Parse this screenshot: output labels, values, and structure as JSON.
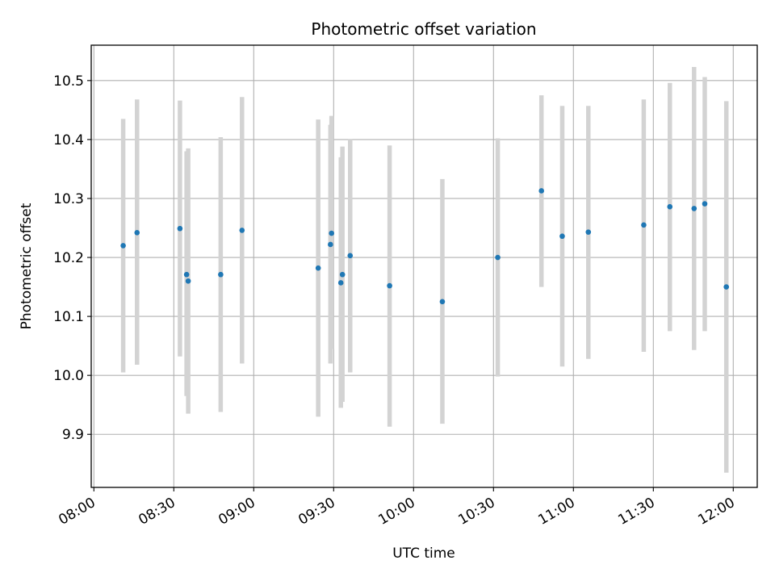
{
  "chart_data": {
    "type": "scatter",
    "title": "Photometric offset variation",
    "xlabel": "UTC time",
    "ylabel": "Photometric offset",
    "grid": true,
    "xlim_minutes": [
      479,
      729
    ],
    "ylim": [
      9.81,
      10.56
    ],
    "x_ticks": [
      {
        "minutes": 480,
        "label": "08:00"
      },
      {
        "minutes": 510,
        "label": "08:30"
      },
      {
        "minutes": 540,
        "label": "09:00"
      },
      {
        "minutes": 570,
        "label": "09:30"
      },
      {
        "minutes": 600,
        "label": "10:00"
      },
      {
        "minutes": 630,
        "label": "10:30"
      },
      {
        "minutes": 660,
        "label": "11:00"
      },
      {
        "minutes": 690,
        "label": "11:30"
      },
      {
        "minutes": 720,
        "label": "12:00"
      }
    ],
    "y_ticks": [
      {
        "value": 9.9,
        "label": "9.9"
      },
      {
        "value": 10.0,
        "label": "10.0"
      },
      {
        "value": 10.1,
        "label": "10.1"
      },
      {
        "value": 10.2,
        "label": "10.2"
      },
      {
        "value": 10.3,
        "label": "10.3"
      },
      {
        "value": 10.4,
        "label": "10.4"
      },
      {
        "value": 10.5,
        "label": "10.5"
      }
    ],
    "marker_color": "#1f77b4",
    "errorbar_color": "#d3d3d3",
    "points": [
      {
        "minutes": 491.0,
        "time": "08:11",
        "value": 10.22,
        "low": 10.005,
        "high": 10.435
      },
      {
        "minutes": 496.2,
        "time": "08:16",
        "value": 10.242,
        "low": 10.018,
        "high": 10.468
      },
      {
        "minutes": 512.3,
        "time": "08:32",
        "value": 10.249,
        "low": 10.032,
        "high": 10.466
      },
      {
        "minutes": 514.8,
        "time": "08:35",
        "value": 10.171,
        "low": 9.965,
        "high": 10.38
      },
      {
        "minutes": 515.4,
        "time": "08:35",
        "value": 10.16,
        "low": 9.935,
        "high": 10.385
      },
      {
        "minutes": 527.6,
        "time": "08:48",
        "value": 10.171,
        "low": 9.938,
        "high": 10.404
      },
      {
        "minutes": 535.6,
        "time": "08:56",
        "value": 10.246,
        "low": 10.02,
        "high": 10.472
      },
      {
        "minutes": 564.2,
        "time": "09:24",
        "value": 10.182,
        "low": 9.93,
        "high": 10.434
      },
      {
        "minutes": 568.8,
        "time": "09:29",
        "value": 10.222,
        "low": 10.02,
        "high": 10.425
      },
      {
        "minutes": 569.2,
        "time": "09:29",
        "value": 10.241,
        "low": 10.045,
        "high": 10.44
      },
      {
        "minutes": 572.7,
        "time": "09:33",
        "value": 10.157,
        "low": 9.945,
        "high": 10.37
      },
      {
        "minutes": 573.3,
        "time": "09:33",
        "value": 10.171,
        "low": 9.955,
        "high": 10.388
      },
      {
        "minutes": 576.2,
        "time": "09:36",
        "value": 10.203,
        "low": 10.005,
        "high": 10.401
      },
      {
        "minutes": 591.0,
        "time": "09:51",
        "value": 10.152,
        "low": 9.913,
        "high": 10.39
      },
      {
        "minutes": 610.8,
        "time": "10:11",
        "value": 10.125,
        "low": 9.918,
        "high": 10.333
      },
      {
        "minutes": 631.6,
        "time": "10:32",
        "value": 10.2,
        "low": 9.998,
        "high": 10.402
      },
      {
        "minutes": 648.0,
        "time": "10:48",
        "value": 10.313,
        "low": 10.15,
        "high": 10.475
      },
      {
        "minutes": 655.8,
        "time": "10:56",
        "value": 10.236,
        "low": 10.015,
        "high": 10.457
      },
      {
        "minutes": 665.6,
        "time": "11:06",
        "value": 10.243,
        "low": 10.028,
        "high": 10.457
      },
      {
        "minutes": 686.4,
        "time": "11:26",
        "value": 10.255,
        "low": 10.04,
        "high": 10.468
      },
      {
        "minutes": 696.2,
        "time": "11:36",
        "value": 10.286,
        "low": 10.075,
        "high": 10.496
      },
      {
        "minutes": 705.3,
        "time": "11:45",
        "value": 10.283,
        "low": 10.043,
        "high": 10.523
      },
      {
        "minutes": 709.3,
        "time": "11:49",
        "value": 10.291,
        "low": 10.075,
        "high": 10.506
      },
      {
        "minutes": 717.4,
        "time": "11:57",
        "value": 10.15,
        "low": 9.835,
        "high": 10.465
      }
    ]
  }
}
